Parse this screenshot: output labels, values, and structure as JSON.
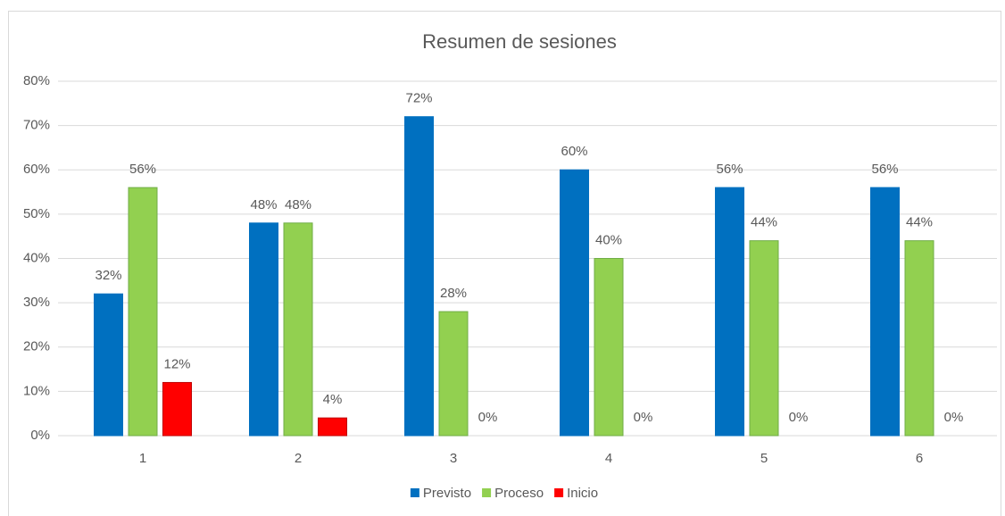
{
  "chart_data": {
    "type": "bar",
    "title": "Resumen de sesiones",
    "categories": [
      "1",
      "2",
      "3",
      "4",
      "5",
      "6"
    ],
    "series": [
      {
        "name": "Previsto",
        "color": "#0070c0",
        "values": [
          32,
          48,
          72,
          60,
          56,
          56
        ],
        "value_labels": [
          "32%",
          "48%",
          "72%",
          "60%",
          "56%",
          "56%"
        ]
      },
      {
        "name": "Proceso",
        "color": "#92d050",
        "values": [
          56,
          48,
          28,
          40,
          44,
          44
        ],
        "value_labels": [
          "56%",
          "48%",
          "28%",
          "40%",
          "44%",
          "44%"
        ]
      },
      {
        "name": "Inicio",
        "color": "#ff0000",
        "values": [
          12,
          4,
          0,
          0,
          0,
          0
        ],
        "value_labels": [
          "12%",
          "4%",
          "0%",
          "0%",
          "0%",
          "0%"
        ]
      }
    ],
    "ylim": [
      0,
      80
    ],
    "yticks": [
      {
        "value": 0,
        "label": "0%"
      },
      {
        "value": 10,
        "label": "10%"
      },
      {
        "value": 20,
        "label": "20%"
      },
      {
        "value": 30,
        "label": "30%"
      },
      {
        "value": 40,
        "label": "40%"
      },
      {
        "value": 50,
        "label": "50%"
      },
      {
        "value": 60,
        "label": "60%"
      },
      {
        "value": 70,
        "label": "70%"
      },
      {
        "value": 80,
        "label": "80%"
      }
    ],
    "grid": true,
    "legend": "bottom"
  }
}
